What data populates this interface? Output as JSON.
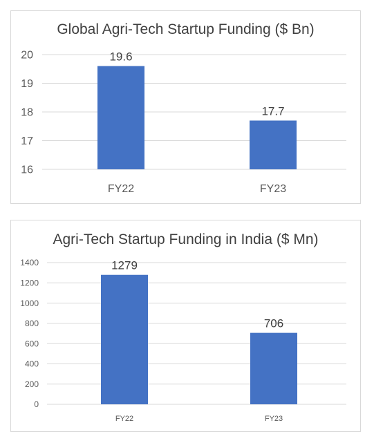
{
  "chart_data": [
    {
      "type": "bar",
      "title": "Global Agri-Tech Startup Funding ($ Bn)",
      "categories": [
        "FY22",
        "FY23"
      ],
      "values": [
        19.6,
        17.7
      ],
      "data_labels": [
        "19.6",
        "17.7"
      ],
      "yticks": [
        "16",
        "17",
        "18",
        "19",
        "20"
      ],
      "ylim": [
        16,
        20
      ],
      "xlabel": "",
      "ylabel": "",
      "grid": true,
      "legend": "none",
      "bar_color": "#4472c4"
    },
    {
      "type": "bar",
      "title": "Agri-Tech Startup Funding in India ($ Mn)",
      "categories": [
        "FY22",
        "FY23"
      ],
      "values": [
        1279,
        706
      ],
      "data_labels": [
        "1279",
        "706"
      ],
      "yticks": [
        "0",
        "200",
        "400",
        "600",
        "800",
        "1000",
        "1200",
        "1400"
      ],
      "ylim": [
        0,
        1400
      ],
      "xlabel": "",
      "ylabel": "",
      "grid": true,
      "legend": "none",
      "bar_color": "#4472c4"
    }
  ]
}
